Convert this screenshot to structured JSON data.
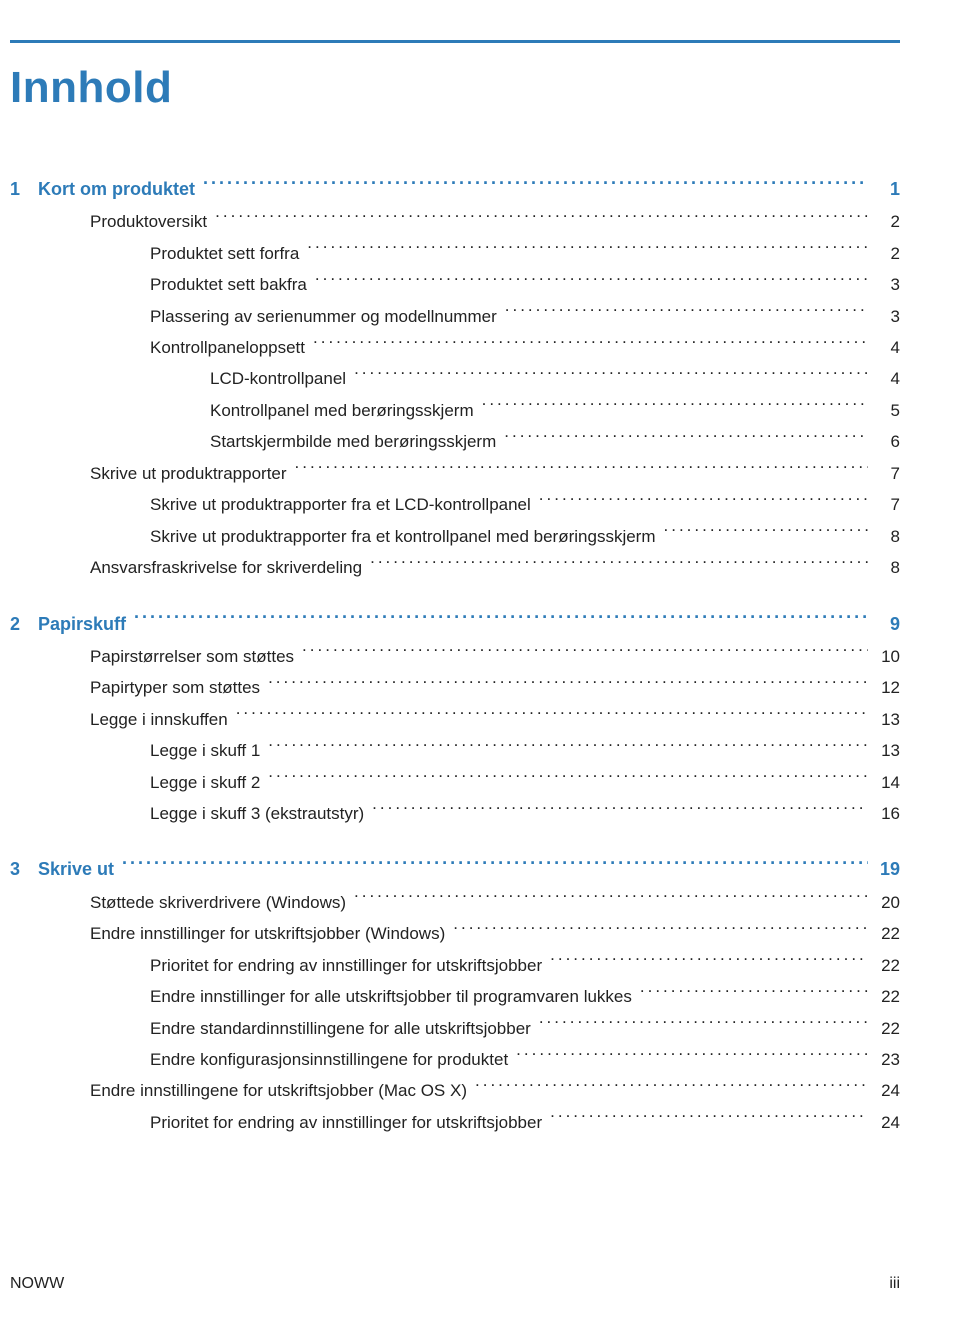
{
  "title": "Innhold",
  "footer": {
    "left": "NOWW",
    "right": "iii"
  },
  "colors": {
    "accent": "#2d7bb8",
    "text": "#222222",
    "background": "#ffffff"
  },
  "toc": [
    {
      "type": "chapter",
      "num": "1",
      "label": "Kort om produktet",
      "page": "1",
      "indent": 0,
      "spaced": false
    },
    {
      "type": "entry",
      "label": "Produktoversikt",
      "page": "2",
      "indent": 1
    },
    {
      "type": "entry",
      "label": "Produktet sett forfra",
      "page": "2",
      "indent": 2
    },
    {
      "type": "entry",
      "label": "Produktet sett bakfra",
      "page": "3",
      "indent": 2
    },
    {
      "type": "entry",
      "label": "Plassering av serienummer og modellnummer",
      "page": "3",
      "indent": 2
    },
    {
      "type": "entry",
      "label": "Kontrollpaneloppsett",
      "page": "4",
      "indent": 2
    },
    {
      "type": "entry",
      "label": "LCD-kontrollpanel",
      "page": "4",
      "indent": 3
    },
    {
      "type": "entry",
      "label": "Kontrollpanel med berøringsskjerm",
      "page": "5",
      "indent": 3
    },
    {
      "type": "entry",
      "label": "Startskjermbilde med berøringsskjerm",
      "page": "6",
      "indent": 3
    },
    {
      "type": "entry",
      "label": "Skrive ut produktrapporter",
      "page": "7",
      "indent": 1
    },
    {
      "type": "entry",
      "label": "Skrive ut produktrapporter fra et LCD-kontrollpanel",
      "page": "7",
      "indent": 2
    },
    {
      "type": "entry",
      "label": "Skrive ut produktrapporter fra et kontrollpanel med berøringsskjerm",
      "page": "8",
      "indent": 2
    },
    {
      "type": "entry",
      "label": "Ansvarsfraskrivelse for skriverdeling",
      "page": "8",
      "indent": 1
    },
    {
      "type": "chapter",
      "num": "2",
      "label": "Papirskuff",
      "page": "9",
      "indent": 0,
      "spaced": true
    },
    {
      "type": "entry",
      "label": "Papirstørrelser som støttes",
      "page": "10",
      "indent": 1
    },
    {
      "type": "entry",
      "label": "Papirtyper som støttes",
      "page": "12",
      "indent": 1
    },
    {
      "type": "entry",
      "label": "Legge i innskuffen",
      "page": "13",
      "indent": 1
    },
    {
      "type": "entry",
      "label": "Legge i skuff 1",
      "page": "13",
      "indent": 2
    },
    {
      "type": "entry",
      "label": "Legge i skuff 2",
      "page": "14",
      "indent": 2
    },
    {
      "type": "entry",
      "label": "Legge i skuff 3 (ekstrautstyr)",
      "page": "16",
      "indent": 2
    },
    {
      "type": "chapter",
      "num": "3",
      "label": "Skrive ut",
      "page": "19",
      "indent": 0,
      "spaced": true
    },
    {
      "type": "entry",
      "label": "Støttede skriverdrivere (Windows)",
      "page": "20",
      "indent": 1
    },
    {
      "type": "entry",
      "label": "Endre innstillinger for utskriftsjobber (Windows)",
      "page": "22",
      "indent": 1
    },
    {
      "type": "entry",
      "label": "Prioritet for endring av innstillinger for utskriftsjobber",
      "page": "22",
      "indent": 2
    },
    {
      "type": "entry",
      "label": "Endre innstillinger for alle utskriftsjobber til programvaren lukkes",
      "page": "22",
      "indent": 2
    },
    {
      "type": "entry",
      "label": "Endre standardinnstillingene for alle utskriftsjobber",
      "page": "22",
      "indent": 2
    },
    {
      "type": "entry",
      "label": "Endre konfigurasjonsinnstillingene for produktet",
      "page": "23",
      "indent": 2
    },
    {
      "type": "entry",
      "label": "Endre innstillingene for utskriftsjobber (Mac OS X)",
      "page": "24",
      "indent": 1
    },
    {
      "type": "entry",
      "label": "Prioritet for endring av innstillinger for utskriftsjobber",
      "page": "24",
      "indent": 2
    }
  ]
}
